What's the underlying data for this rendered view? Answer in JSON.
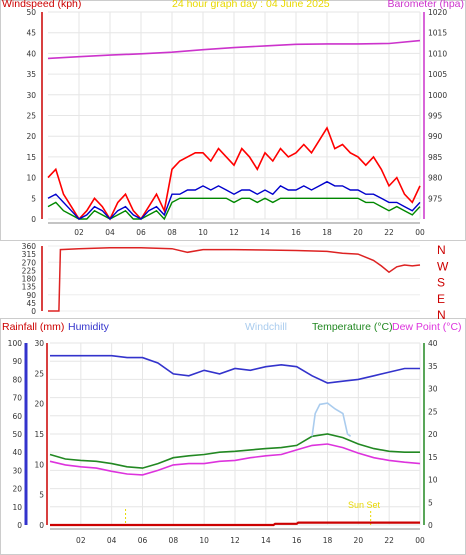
{
  "header": {
    "title": "24 hour graph day : 04 June 2025",
    "windspeed_label": "Windspeed (kph)",
    "barometer_label": "Barometer (hpa)"
  },
  "legend": {
    "rainfall": "Rainfall (mm)",
    "humidity": "Humidity",
    "windchill": "Windchill",
    "temperature": "Temperature (°C)",
    "dewpoint": "Dew Point (°C)"
  },
  "annotations": {
    "sunset": "Sun Set"
  },
  "colors": {
    "windspeed": "#cc0000",
    "barometer": "#cc33cc",
    "title": "#e8d800",
    "gust": "#ff0000",
    "avg_wind": "#0000cc",
    "wind_green": "#008800",
    "direction": "#dd2222",
    "humidity": "#3333cc",
    "windchill": "#aaccee",
    "temperature": "#228822",
    "dewpoint": "#dd33dd",
    "rainfall": "#cc0000",
    "sun": "#e8d800"
  },
  "chart_data": [
    {
      "type": "line",
      "title": "24 hour graph day : 04 June 2025",
      "ylabel": "Windspeed (kph)",
      "y2label": "Barometer (hpa)",
      "xlim": [
        0,
        24
      ],
      "ylim": [
        0,
        50
      ],
      "y2lim": [
        970,
        1020
      ],
      "x_ticks": [
        "02",
        "04",
        "06",
        "08",
        "10",
        "12",
        "14",
        "16",
        "18",
        "20",
        "22",
        "00"
      ],
      "y_ticks": [
        0,
        5,
        10,
        15,
        20,
        25,
        30,
        35,
        40,
        45,
        50
      ],
      "y2_ticks": [
        975,
        980,
        985,
        990,
        995,
        1000,
        1005,
        1010,
        1015,
        1020
      ],
      "grid": true,
      "series": [
        {
          "name": "Barometer (hpa)",
          "axis": "right",
          "x": [
            0,
            2,
            4,
            6,
            8,
            10,
            12,
            14,
            16,
            18,
            20,
            22,
            24
          ],
          "values": [
            1008.8,
            1009.2,
            1009.6,
            1009.9,
            1010.3,
            1010.9,
            1011.4,
            1011.8,
            1012.2,
            1012.3,
            1012.3,
            1012.4,
            1013.1
          ]
        },
        {
          "name": "Windspeed (kph)",
          "axis": "left",
          "x": [
            0,
            0.5,
            1,
            1.5,
            2,
            2.5,
            3,
            3.5,
            4,
            4.5,
            5,
            5.5,
            6,
            6.5,
            7,
            7.5,
            8,
            8.5,
            9,
            9.5,
            10,
            10.5,
            11,
            11.5,
            12,
            12.5,
            13,
            13.5,
            14,
            14.5,
            15,
            15.5,
            16,
            16.5,
            17,
            17.5,
            18,
            18.5,
            19,
            19.5,
            20,
            20.5,
            21,
            21.5,
            22,
            22.5,
            23,
            23.5,
            24
          ],
          "values": [
            10,
            12,
            6,
            3,
            0,
            2,
            5,
            3,
            0,
            4,
            6,
            2,
            0,
            3,
            6,
            2,
            12,
            14,
            15,
            16,
            16,
            14,
            17,
            15,
            13,
            17,
            15,
            12,
            16,
            14,
            17,
            15,
            16,
            18,
            16,
            19,
            22,
            17,
            18,
            16,
            15,
            13,
            15,
            12,
            8,
            10,
            6,
            4,
            8
          ]
        },
        {
          "name": "Average wind",
          "axis": "left",
          "x": [
            0,
            0.5,
            1,
            1.5,
            2,
            2.5,
            3,
            3.5,
            4,
            4.5,
            5,
            5.5,
            6,
            6.5,
            7,
            7.5,
            8,
            8.5,
            9,
            9.5,
            10,
            10.5,
            11,
            11.5,
            12,
            12.5,
            13,
            13.5,
            14,
            14.5,
            15,
            15.5,
            16,
            16.5,
            17,
            17.5,
            18,
            18.5,
            19,
            19.5,
            20,
            20.5,
            21,
            21.5,
            22,
            22.5,
            23,
            23.5,
            24
          ],
          "values": [
            5,
            6,
            4,
            2,
            0,
            1,
            3,
            2,
            0,
            2,
            3,
            1,
            0,
            2,
            3,
            1,
            6,
            6,
            7,
            7,
            8,
            7,
            8,
            7,
            6,
            7,
            7,
            6,
            7,
            6,
            8,
            7,
            7,
            8,
            7,
            8,
            9,
            8,
            8,
            7,
            7,
            6,
            6,
            5,
            4,
            4,
            3,
            2,
            4
          ]
        },
        {
          "name": "Wind (green)",
          "axis": "left",
          "x": [
            0,
            0.5,
            1,
            1.5,
            2,
            2.5,
            3,
            3.5,
            4,
            4.5,
            5,
            5.5,
            6,
            6.5,
            7,
            7.5,
            8,
            8.5,
            9,
            9.5,
            10,
            10.5,
            11,
            11.5,
            12,
            12.5,
            13,
            13.5,
            14,
            14.5,
            15,
            15.5,
            16,
            16.5,
            17,
            17.5,
            18,
            18.5,
            19,
            19.5,
            20,
            20.5,
            21,
            21.5,
            22,
            22.5,
            23,
            23.5,
            24
          ],
          "values": [
            3,
            4,
            2,
            1,
            0,
            0,
            2,
            1,
            0,
            1,
            2,
            0,
            0,
            1,
            2,
            0,
            4,
            5,
            5,
            5,
            5,
            5,
            5,
            5,
            4,
            5,
            5,
            4,
            5,
            4,
            5,
            5,
            5,
            5,
            5,
            5,
            5,
            5,
            5,
            5,
            5,
            4,
            4,
            3,
            2,
            3,
            2,
            1,
            3
          ]
        }
      ]
    },
    {
      "type": "line",
      "ylabel": "Wind direction",
      "xlim": [
        0,
        24
      ],
      "ylim": [
        0,
        360
      ],
      "y_ticks": [
        0,
        45,
        90,
        135,
        180,
        225,
        270,
        315,
        360
      ],
      "direction_labels": [
        "N",
        "W",
        "S",
        "E",
        "N"
      ],
      "grid": true,
      "series": [
        {
          "name": "Wind direction",
          "x": [
            0,
            0.7,
            0.8,
            2,
            4,
            6,
            8,
            9,
            10,
            12,
            14,
            16,
            18,
            19,
            20,
            21,
            21.5,
            22,
            22.5,
            23,
            23.5,
            24
          ],
          "values": [
            0,
            0,
            340,
            345,
            350,
            350,
            345,
            325,
            340,
            340,
            338,
            335,
            330,
            320,
            315,
            280,
            250,
            215,
            245,
            255,
            250,
            255
          ]
        }
      ]
    },
    {
      "type": "line",
      "ylabel": "Rainfall (mm)",
      "y2label": "Temperature (°C)",
      "xlim": [
        0,
        24
      ],
      "x_ticks": [
        "02",
        "04",
        "06",
        "08",
        "10",
        "12",
        "14",
        "16",
        "18",
        "20",
        "22",
        "00"
      ],
      "humidity_ticks": [
        0,
        10,
        20,
        30,
        40,
        50,
        60,
        70,
        80,
        90,
        100
      ],
      "rain_ticks": [
        0,
        5,
        10,
        15,
        20,
        25,
        30
      ],
      "temperature_ticks": [
        0,
        5,
        10,
        15,
        20,
        25,
        30,
        35,
        40
      ],
      "grid": true,
      "series": [
        {
          "name": "Humidity",
          "axis": "humidity",
          "x": [
            0,
            2,
            4,
            5,
            6,
            7,
            8,
            9,
            10,
            11,
            12,
            13,
            14,
            15,
            16,
            17,
            18,
            19,
            20,
            21,
            22,
            23,
            24
          ],
          "values": [
            93,
            93,
            93,
            92,
            92,
            89,
            83,
            82,
            85,
            83,
            86,
            85,
            87,
            88,
            87,
            82,
            78,
            79,
            80,
            82,
            84,
            86,
            86
          ]
        },
        {
          "name": "Temperature (°C)",
          "axis": "temperature",
          "x": [
            0,
            1,
            2,
            3,
            4,
            5,
            6,
            7,
            8,
            9,
            10,
            11,
            12,
            13,
            14,
            15,
            16,
            17,
            18,
            19,
            20,
            21,
            22,
            23,
            24
          ],
          "values": [
            15.5,
            14.5,
            14.2,
            14.0,
            13.5,
            12.8,
            12.5,
            13.5,
            14.8,
            15.2,
            15.5,
            16.0,
            16.2,
            16.5,
            16.8,
            17.0,
            17.5,
            19.5,
            20.0,
            19.2,
            17.8,
            16.8,
            16.2,
            16.0,
            16.0
          ]
        },
        {
          "name": "Windchill",
          "axis": "temperature",
          "x": [
            17,
            17.2,
            17.5,
            18,
            18.5,
            19,
            19.3,
            19.5
          ],
          "values": [
            19.5,
            24.5,
            26.5,
            26.8,
            25.5,
            24.5,
            20,
            19.5
          ]
        },
        {
          "name": "Dew Point (°C)",
          "axis": "temperature",
          "x": [
            0,
            1,
            2,
            3,
            4,
            5,
            6,
            7,
            8,
            9,
            10,
            11,
            12,
            13,
            14,
            15,
            16,
            17,
            18,
            19,
            20,
            21,
            22,
            23,
            24
          ],
          "values": [
            14.0,
            13.2,
            12.8,
            12.5,
            11.8,
            11.2,
            11.0,
            12.0,
            13.2,
            13.5,
            13.5,
            14.0,
            14.2,
            14.8,
            15.2,
            15.5,
            16.5,
            17.5,
            17.8,
            17.0,
            15.8,
            14.8,
            14.2,
            13.8,
            13.5
          ]
        },
        {
          "name": "Rainfall (mm)",
          "axis": "rain",
          "x": [
            0,
            4,
            8,
            12,
            14.5,
            14.6,
            16,
            16.1,
            20,
            24
          ],
          "values": [
            0,
            0,
            0,
            0,
            0,
            0.2,
            0.2,
            0.4,
            0.4,
            0.4
          ]
        }
      ]
    }
  ]
}
